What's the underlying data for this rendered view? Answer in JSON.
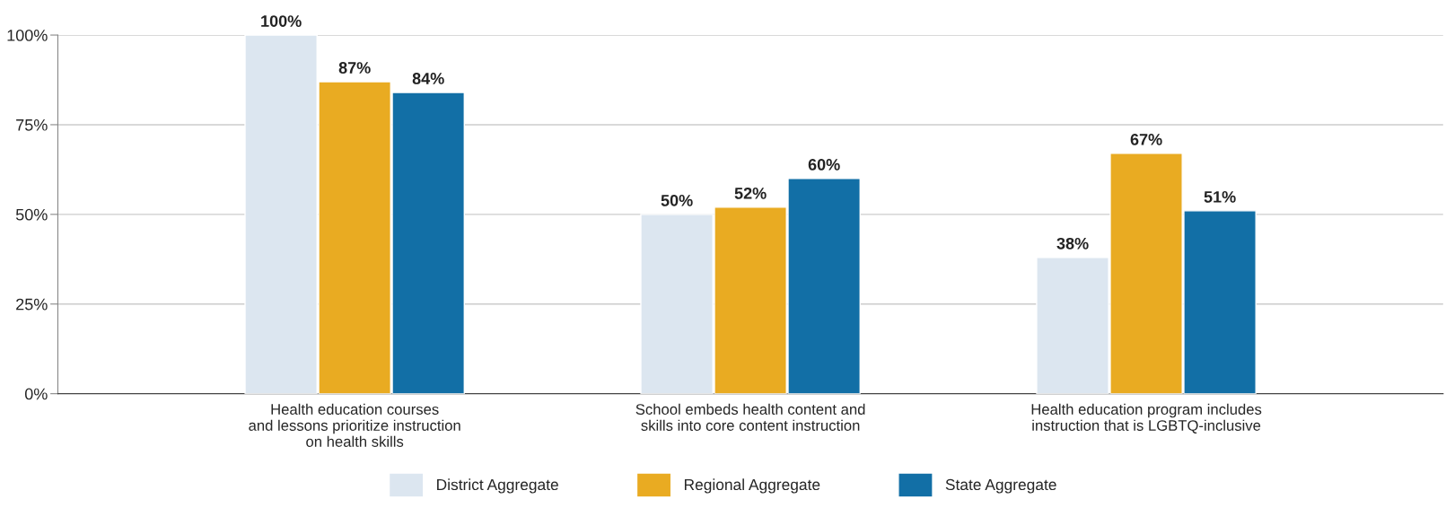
{
  "chart_data": {
    "type": "bar",
    "categories": [
      "Health education courses\nand lessons prioritize instruction\non health skills",
      "School embeds health content and\nskills into core content instruction",
      "Health education program includes\ninstruction that is LGBTQ-inclusive"
    ],
    "series": [
      {
        "name": "District Aggregate",
        "color": "#dce6f0",
        "values": [
          100,
          50,
          38
        ],
        "value_labels": [
          "100%",
          "50%",
          "38%"
        ]
      },
      {
        "name": "Regional Aggregate",
        "color": "#e9ab22",
        "values": [
          87,
          52,
          67
        ],
        "value_labels": [
          "87%",
          "52%",
          "67%"
        ]
      },
      {
        "name": "State Aggregate",
        "color": "#126fa6",
        "values": [
          84,
          60,
          51
        ],
        "value_labels": [
          "84%",
          "60%",
          "51%"
        ]
      }
    ],
    "ylim": [
      0,
      100
    ],
    "yticks": [
      {
        "value": 0,
        "label": "0%"
      },
      {
        "value": 25,
        "label": "25%"
      },
      {
        "value": 50,
        "label": "50%"
      },
      {
        "value": 75,
        "label": "75%"
      },
      {
        "value": 100,
        "label": "100%"
      }
    ],
    "grid": "y",
    "legend": "bottom"
  }
}
